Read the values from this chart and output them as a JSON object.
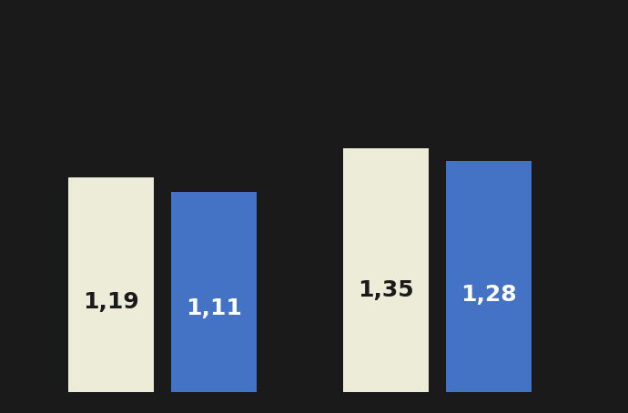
{
  "values": [
    1.19,
    1.11,
    1.35,
    1.28
  ],
  "labels": [
    "1,19",
    "1,11",
    "1,35",
    "1,28"
  ],
  "colors": [
    "#EDECD9",
    "#4472C4",
    "#EDECD9",
    "#4472C4"
  ],
  "label_colors": [
    "#1a1a1a",
    "#ffffff",
    "#1a1a1a",
    "#ffffff"
  ],
  "background_color": "#1a1a1a",
  "ylim": [
    0,
    2.1
  ],
  "label_fontsize": 18,
  "label_fontweight": "bold",
  "bar_positions": [
    0.5,
    1.1,
    2.1,
    2.7
  ],
  "bar_width": 0.5,
  "xlim": [
    0.0,
    3.4
  ]
}
